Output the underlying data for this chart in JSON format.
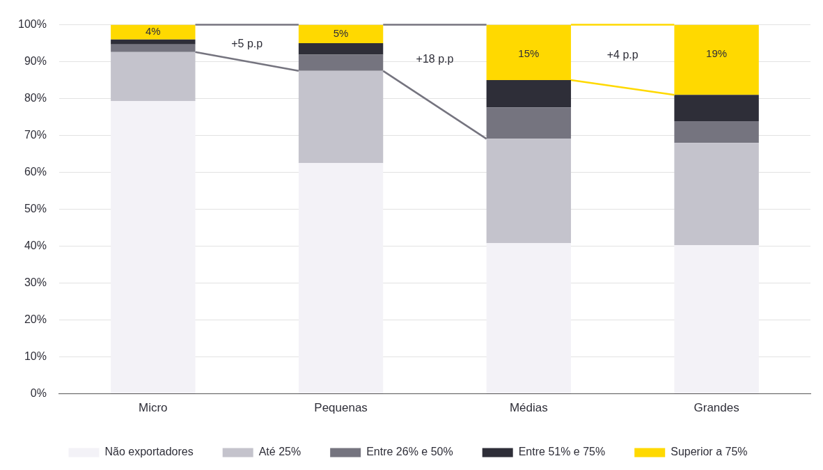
{
  "chart_data": {
    "type": "bar",
    "stacked": true,
    "categories": [
      "Micro",
      "Pequenas",
      "Médias",
      "Grandes"
    ],
    "series": [
      {
        "name": "Não exportadores",
        "color": "#f3f2f7",
        "values": [
          79.3,
          62.5,
          40.8,
          40.3
        ]
      },
      {
        "name": "Até 25%",
        "color": "#c4c3cc",
        "values": [
          13.3,
          25.0,
          28.3,
          27.7
        ]
      },
      {
        "name": "Entre 26% e 50%",
        "color": "#75747f",
        "values": [
          2.1,
          4.4,
          8.5,
          5.9
        ]
      },
      {
        "name": "Entre 51% e 75%",
        "color": "#2e2e38",
        "values": [
          1.3,
          3.1,
          7.4,
          7.1
        ]
      },
      {
        "name": "Superior a 75%",
        "color": "#ffd900",
        "values": [
          4,
          5,
          15,
          19
        ],
        "value_labels": [
          "4%",
          "5%",
          "15%",
          "19%"
        ]
      }
    ],
    "ylim": [
      0,
      100
    ],
    "yticks": [
      {
        "value": 0,
        "label": "0%"
      },
      {
        "value": 10,
        "label": "10%"
      },
      {
        "value": 20,
        "label": "20%"
      },
      {
        "value": 30,
        "label": "30%"
      },
      {
        "value": 40,
        "label": "40%"
      },
      {
        "value": 50,
        "label": "50%"
      },
      {
        "value": 60,
        "label": "60%"
      },
      {
        "value": 70,
        "label": "70%"
      },
      {
        "value": 80,
        "label": "80%"
      },
      {
        "value": 90,
        "label": "90%"
      },
      {
        "value": 100,
        "label": "100%"
      }
    ],
    "annotations": [
      "+5 p.p",
      "+18 p.p",
      "+4 p.p"
    ],
    "grid": "y",
    "legend": "bottom"
  }
}
